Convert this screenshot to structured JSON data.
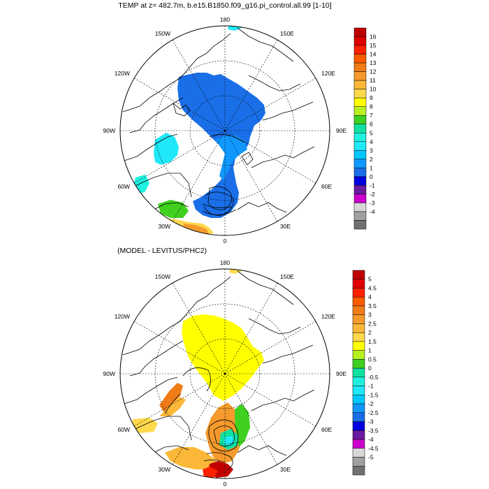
{
  "panels": [
    {
      "id": "model",
      "title": "TEMP at z= 482.7m, b.e15.B1850.f09_g16.pi_control.all.99 [1-10]",
      "lon_labels": [
        "180",
        "150E",
        "120E",
        "90E",
        "60E",
        "30E",
        "0",
        "30W",
        "60W",
        "90W",
        "120W",
        "150W"
      ],
      "colorbar": {
        "labels": [
          "16",
          "15",
          "14",
          "13",
          "12",
          "11",
          "10",
          "9",
          "8",
          "7",
          "6",
          "5",
          "4",
          "3",
          "2",
          "1",
          "0",
          "-1",
          "-2",
          "-3",
          "-4"
        ],
        "colors": [
          "#c00000",
          "#e00000",
          "#ff2000",
          "#ff5a00",
          "#f07c18",
          "#f59a2c",
          "#fbb838",
          "#ffd84c",
          "#ffff00",
          "#b8f020",
          "#40d020",
          "#10e0a0",
          "#20f0e0",
          "#20e8f8",
          "#00c8ff",
          "#1098ff",
          "#1a6fe8",
          "#0000e0",
          "#6a1aa0",
          "#cc00cc",
          "#d8d8d8",
          "#a0a0a0",
          "#707070"
        ]
      }
    },
    {
      "id": "difference",
      "title": "(MODEL - LEVITUS/PHC2)",
      "lon_labels": [
        "180",
        "150E",
        "120E",
        "90E",
        "60E",
        "30E",
        "0",
        "30W",
        "60W",
        "90W",
        "120W",
        "150W"
      ],
      "colorbar": {
        "labels": [
          "5",
          "4.5",
          "4",
          "3.5",
          "3",
          "2.5",
          "2",
          "1.5",
          "1",
          "0.5",
          "0",
          "-0.5",
          "-1",
          "-1.5",
          "-2",
          "-2.5",
          "-3",
          "-3.5",
          "-4",
          "-4.5",
          "-5"
        ],
        "colors": [
          "#c00000",
          "#e00000",
          "#ff2000",
          "#ff5a00",
          "#f07c18",
          "#f59a2c",
          "#fbb838",
          "#ffd84c",
          "#ffff00",
          "#b8f020",
          "#40d020",
          "#10e0a0",
          "#20f0e0",
          "#20e8f8",
          "#00c8ff",
          "#1098ff",
          "#1a6fe8",
          "#0000e0",
          "#6a1aa0",
          "#cc00cc",
          "#d8d8d8",
          "#a0a0a0",
          "#707070"
        ]
      }
    }
  ]
}
